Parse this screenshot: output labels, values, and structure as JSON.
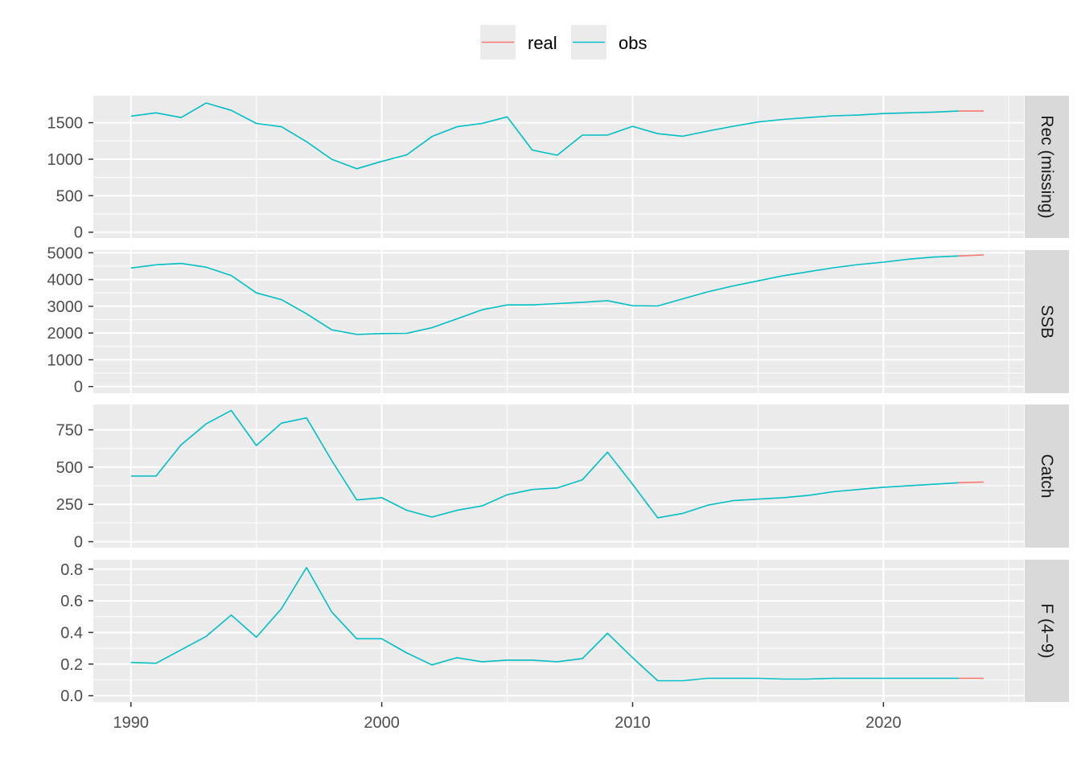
{
  "chart_data": {
    "type": "line",
    "legend": {
      "position": "top",
      "entries": [
        {
          "name": "real",
          "color": "#F8766D"
        },
        {
          "name": "obs",
          "color": "#00BFC4"
        }
      ]
    },
    "x_range": [
      1988.5,
      2025.6
    ],
    "x_ticks": [
      1990,
      2000,
      2010,
      2020
    ],
    "x_tick_labels": [
      "1990",
      "2000",
      "2010",
      "2020"
    ],
    "grid": true,
    "panels": [
      {
        "strip": "Rec (missing)",
        "ylim": [
          -80,
          1870
        ],
        "yticks": [
          0,
          500,
          1000,
          1500
        ],
        "ytick_labels": [
          "0",
          "500",
          "1000",
          "1500"
        ],
        "obs": {
          "x": [
            1990,
            1991,
            1992,
            1993,
            1994,
            1995,
            1996,
            1997,
            1998,
            1999,
            2000,
            2001,
            2002,
            2003,
            2004,
            2005,
            2006,
            2007,
            2008,
            2009,
            2010,
            2011,
            2012,
            2013,
            2014,
            2015,
            2016,
            2017,
            2018,
            2019,
            2020,
            2021,
            2022,
            2023
          ],
          "y": [
            1590,
            1635,
            1570,
            1770,
            1670,
            1490,
            1445,
            1240,
            1000,
            870,
            970,
            1060,
            1310,
            1445,
            1490,
            1580,
            1125,
            1055,
            1330,
            1330,
            1450,
            1350,
            1315,
            1385,
            1450,
            1510,
            1545,
            1570,
            1595,
            1605,
            1625,
            1635,
            1645,
            1660
          ]
        },
        "real": {
          "x": [
            2023,
            2024
          ],
          "y": [
            1660,
            1660
          ]
        }
      },
      {
        "strip": "SSB",
        "ylim": [
          -250,
          5100
        ],
        "yticks": [
          0,
          1000,
          2000,
          3000,
          4000,
          5000
        ],
        "ytick_labels": [
          "0",
          "1000",
          "2000",
          "3000",
          "4000",
          "5000"
        ],
        "obs": {
          "x": [
            1990,
            1991,
            1992,
            1993,
            1994,
            1995,
            1996,
            1997,
            1998,
            1999,
            2000,
            2001,
            2002,
            2003,
            2004,
            2005,
            2006,
            2007,
            2008,
            2009,
            2010,
            2011,
            2012,
            2013,
            2014,
            2015,
            2016,
            2017,
            2018,
            2019,
            2020,
            2021,
            2022,
            2023
          ],
          "y": [
            4430,
            4550,
            4600,
            4460,
            4150,
            3500,
            3250,
            2720,
            2120,
            1950,
            1980,
            1990,
            2200,
            2530,
            2870,
            3050,
            3050,
            3100,
            3150,
            3210,
            3020,
            3010,
            3280,
            3540,
            3760,
            3950,
            4140,
            4290,
            4440,
            4560,
            4650,
            4760,
            4840,
            4880
          ]
        },
        "real": {
          "x": [
            2023,
            2024
          ],
          "y": [
            4880,
            4920
          ]
        }
      },
      {
        "strip": "Catch",
        "ylim": [
          -40,
          920
        ],
        "yticks": [
          0,
          250,
          500,
          750
        ],
        "ytick_labels": [
          "0",
          "250",
          "500",
          "750"
        ],
        "obs": {
          "x": [
            1990,
            1991,
            1992,
            1993,
            1994,
            1995,
            1996,
            1997,
            1998,
            1999,
            2000,
            2001,
            2002,
            2003,
            2004,
            2005,
            2006,
            2007,
            2008,
            2009,
            2010,
            2011,
            2012,
            2013,
            2014,
            2015,
            2016,
            2017,
            2018,
            2019,
            2020,
            2021,
            2022,
            2023
          ],
          "y": [
            440,
            440,
            650,
            790,
            880,
            645,
            795,
            830,
            545,
            280,
            295,
            210,
            165,
            210,
            240,
            315,
            350,
            360,
            415,
            600,
            385,
            160,
            190,
            245,
            275,
            285,
            295,
            310,
            335,
            350,
            365,
            375,
            385,
            395
          ]
        },
        "real": {
          "x": [
            2023,
            2024
          ],
          "y": [
            395,
            400
          ]
        }
      },
      {
        "strip": "F (4−9)",
        "ylim": [
          -0.04,
          0.86
        ],
        "yticks": [
          0.0,
          0.2,
          0.4,
          0.6,
          0.8
        ],
        "ytick_labels": [
          "0.0",
          "0.2",
          "0.4",
          "0.6",
          "0.8"
        ],
        "obs": {
          "x": [
            1990,
            1991,
            1992,
            1993,
            1994,
            1995,
            1996,
            1997,
            1998,
            1999,
            2000,
            2001,
            2002,
            2003,
            2004,
            2005,
            2006,
            2007,
            2008,
            2009,
            2010,
            2011,
            2012,
            2013,
            2014,
            2015,
            2016,
            2017,
            2018,
            2019,
            2020,
            2021,
            2022,
            2023
          ],
          "y": [
            0.21,
            0.205,
            0.29,
            0.375,
            0.51,
            0.37,
            0.55,
            0.81,
            0.53,
            0.36,
            0.36,
            0.27,
            0.195,
            0.24,
            0.215,
            0.225,
            0.225,
            0.215,
            0.235,
            0.395,
            0.24,
            0.095,
            0.095,
            0.11,
            0.11,
            0.11,
            0.105,
            0.105,
            0.11,
            0.11,
            0.11,
            0.11,
            0.11,
            0.11
          ]
        },
        "real": {
          "x": [
            2023,
            2024
          ],
          "y": [
            0.11,
            0.11
          ]
        }
      }
    ]
  }
}
